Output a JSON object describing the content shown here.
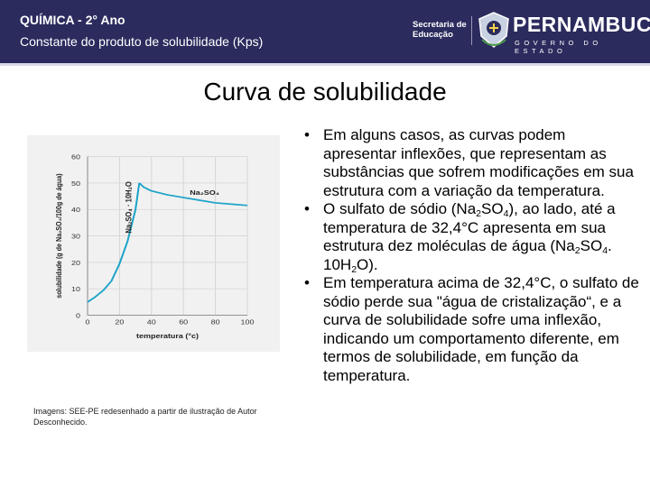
{
  "header": {
    "title": "QUÍMICA - 2° Ano",
    "subtitle": "Constante do produto de solubilidade (Kps)",
    "secretaria_line1": "Secretaria de",
    "secretaria_line2": "Educação",
    "state_name": "PERNAMBUCO",
    "state_sub": "GOVERNO DO ESTADO"
  },
  "slide": {
    "title": "Curva de solubilidade",
    "image_credit": "Imagens: SEE-PE redesenhado a partir de ilustração de Autor Desconhecido."
  },
  "bullets": [
    {
      "parts": [
        {
          "t": "Em alguns casos, as curvas podem apresentar inflexões, que representam as substâncias que sofrem modificações em sua estrutura com a variação da temperatura."
        }
      ]
    },
    {
      "parts": [
        {
          "t": "O sulfato de sódio (Na"
        },
        {
          "s": "2"
        },
        {
          "t": "SO"
        },
        {
          "s": "4"
        },
        {
          "t": "), ao lado, até a temperatura de 32,4°C apresenta em sua estrutura dez moléculas de água (Na"
        },
        {
          "s": "2"
        },
        {
          "t": "SO"
        },
        {
          "s": "4"
        },
        {
          "t": ". 10H"
        },
        {
          "s": "2"
        },
        {
          "t": "O)."
        }
      ]
    },
    {
      "parts": [
        {
          "t": "Em temperatura acima de 32,4°C, o sulfato de sódio perde sua \"água de cristalização“, e a curva de solubilidade sofre uma inflexão, indicando um comportamento diferente, em termos de solubilidade, em função da temperatura."
        }
      ]
    }
  ],
  "colors": {
    "header_bg": "#2b2b5e",
    "curve": "#1aa3c8",
    "chart_bg": "#f1f1f1"
  },
  "chart_data": {
    "type": "line",
    "xlabel": "temperatura (°c)",
    "ylabel": "solubilidade (g de Na₂SO₄/100g de água)",
    "xlim": [
      0,
      100
    ],
    "ylim": [
      0,
      60
    ],
    "xticks": [
      0,
      20,
      40,
      60,
      80,
      100
    ],
    "yticks": [
      0,
      10,
      20,
      30,
      40,
      50,
      60
    ],
    "grid": true,
    "series": [
      {
        "name": "Na₂SO₄ · 10H₂O",
        "x": [
          0,
          5,
          10,
          15,
          20,
          25,
          30,
          32.4
        ],
        "y": [
          5,
          7,
          9.5,
          13,
          19.5,
          28,
          40,
          50
        ]
      },
      {
        "name": "Na₂SO₄",
        "x": [
          32.4,
          35,
          40,
          50,
          60,
          70,
          80,
          90,
          100
        ],
        "y": [
          50,
          48.5,
          47,
          45.5,
          44.5,
          43.5,
          42.5,
          42,
          41.5
        ]
      }
    ]
  }
}
